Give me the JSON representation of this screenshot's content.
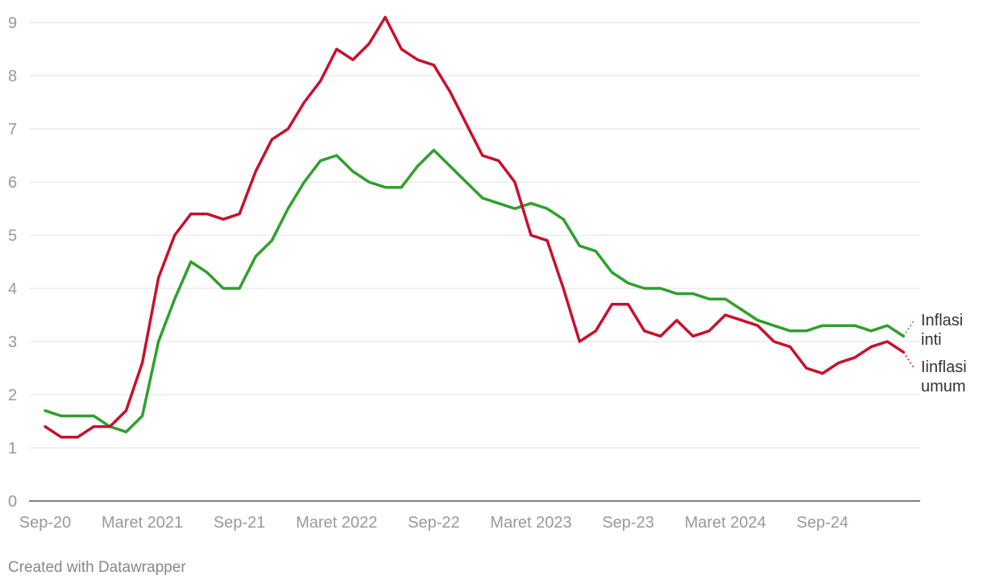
{
  "chart_data": {
    "type": "line",
    "title": "",
    "xlabel": "",
    "ylabel": "",
    "ylim": [
      0,
      9
    ],
    "yticks": [
      0,
      1,
      2,
      3,
      4,
      5,
      6,
      7,
      8,
      9
    ],
    "grid": true,
    "x_tick_labels": [
      {
        "index": 0,
        "label": "Sep-20"
      },
      {
        "index": 6,
        "label": "Maret 2021"
      },
      {
        "index": 12,
        "label": "Sep-21"
      },
      {
        "index": 18,
        "label": "Maret 2022"
      },
      {
        "index": 24,
        "label": "Sep-22"
      },
      {
        "index": 30,
        "label": "Maret 2023"
      },
      {
        "index": 36,
        "label": "Sep-23"
      },
      {
        "index": 42,
        "label": "Maret 2024"
      },
      {
        "index": 48,
        "label": "Sep-24"
      }
    ],
    "series": [
      {
        "name": "Inflasi inti",
        "name_lines": [
          "Inflasi",
          "inti"
        ],
        "color": "#2fa02c",
        "values": [
          1.7,
          1.6,
          1.6,
          1.6,
          1.4,
          1.3,
          1.6,
          3.0,
          3.8,
          4.5,
          4.3,
          4.0,
          4.0,
          4.6,
          4.9,
          5.5,
          6.0,
          6.4,
          6.5,
          6.2,
          6.0,
          5.9,
          5.9,
          6.3,
          6.6,
          6.3,
          6.0,
          5.7,
          5.6,
          5.5,
          5.6,
          5.5,
          5.3,
          4.8,
          4.7,
          4.3,
          4.1,
          4.0,
          4.0,
          3.9,
          3.9,
          3.8,
          3.8,
          3.6,
          3.4,
          3.3,
          3.2,
          3.2,
          3.3,
          3.3,
          3.3,
          3.2,
          3.3,
          3.1
        ]
      },
      {
        "name": "Iinflasi umum",
        "name_lines": [
          "Iinflasi",
          "umum"
        ],
        "color": "#c8102e",
        "values": [
          1.4,
          1.2,
          1.2,
          1.4,
          1.4,
          1.7,
          2.6,
          4.2,
          5.0,
          5.4,
          5.4,
          5.3,
          5.4,
          6.2,
          6.8,
          7.0,
          7.5,
          7.9,
          8.5,
          8.3,
          8.6,
          9.1,
          8.5,
          8.3,
          8.2,
          7.7,
          7.1,
          6.5,
          6.4,
          6.0,
          5.0,
          4.9,
          4.0,
          3.0,
          3.2,
          3.7,
          3.7,
          3.2,
          3.1,
          3.4,
          3.1,
          3.2,
          3.5,
          3.4,
          3.3,
          3.0,
          2.9,
          2.5,
          2.4,
          2.6,
          2.7,
          2.9,
          3.0,
          2.8
        ]
      }
    ]
  },
  "footer": {
    "credit": "Created with Datawrapper"
  }
}
